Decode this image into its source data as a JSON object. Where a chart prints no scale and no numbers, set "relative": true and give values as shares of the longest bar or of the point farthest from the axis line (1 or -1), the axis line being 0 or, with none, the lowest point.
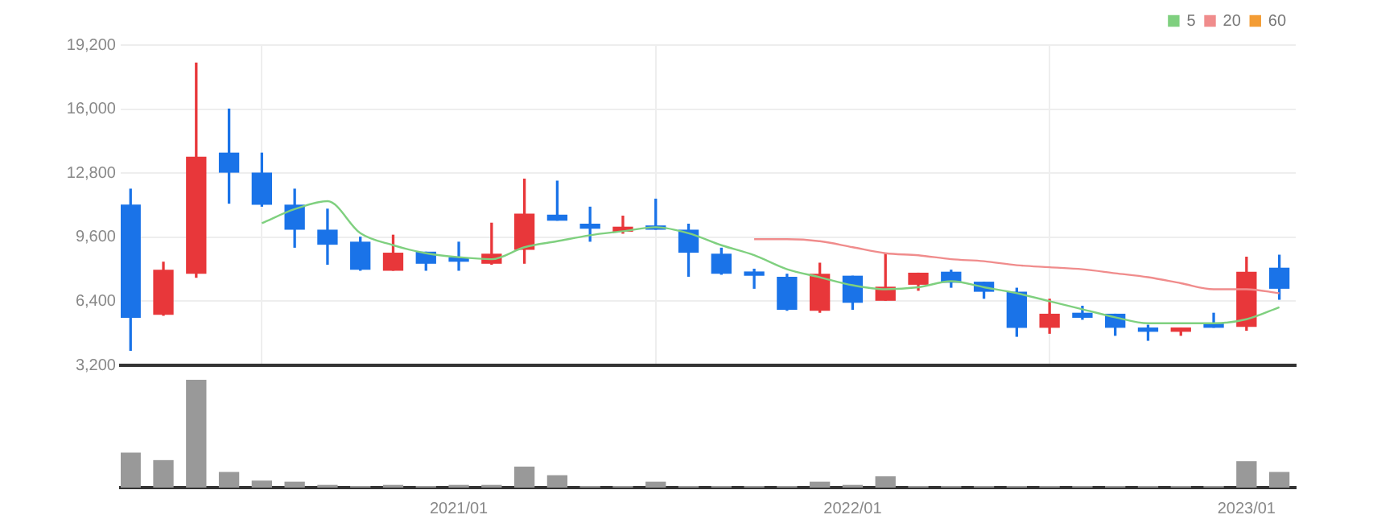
{
  "chart_data": [
    {
      "type": "candlestick",
      "x": [
        "2020-03",
        "2020-04",
        "2020-05",
        "2020-06",
        "2020-07",
        "2020-08",
        "2020-09",
        "2020-10",
        "2020-11",
        "2020-12",
        "2021-01",
        "2021-02",
        "2021-03",
        "2021-04",
        "2021-05",
        "2021-06",
        "2021-07",
        "2021-08",
        "2021-09",
        "2021-10",
        "2021-11",
        "2021-12",
        "2022-01",
        "2022-02",
        "2022-03",
        "2022-04",
        "2022-05",
        "2022-06",
        "2022-07",
        "2022-08",
        "2022-09",
        "2022-10",
        "2022-11",
        "2022-12",
        "2023-01",
        "2023-02"
      ],
      "ohlc": [
        [
          11200,
          12000,
          3950,
          5600
        ],
        [
          5750,
          8350,
          5700,
          7950
        ],
        [
          7800,
          18300,
          7600,
          13600
        ],
        [
          13800,
          16000,
          11300,
          12850
        ],
        [
          12800,
          13800,
          11150,
          11250
        ],
        [
          11200,
          12000,
          9100,
          10000
        ],
        [
          9950,
          11000,
          8250,
          9250
        ],
        [
          9350,
          9600,
          7950,
          8000
        ],
        [
          7950,
          9700,
          7950,
          8800
        ],
        [
          8850,
          8850,
          7950,
          8300
        ],
        [
          8500,
          9350,
          7950,
          8400
        ],
        [
          8300,
          10300,
          8250,
          8750
        ],
        [
          9000,
          12500,
          8300,
          10750
        ],
        [
          10700,
          12400,
          10450,
          10450
        ],
        [
          10250,
          11100,
          9400,
          10050
        ],
        [
          9900,
          10650,
          9800,
          10100
        ],
        [
          10150,
          11500,
          10000,
          10000
        ],
        [
          9950,
          10250,
          7650,
          8850
        ],
        [
          8750,
          9050,
          7750,
          7800
        ],
        [
          7800,
          8000,
          7050,
          7700
        ],
        [
          7600,
          7750,
          5950,
          6000
        ],
        [
          5950,
          8300,
          5850,
          7750
        ],
        [
          7650,
          7650,
          6000,
          6350
        ],
        [
          6450,
          8800,
          6450,
          7100
        ],
        [
          7250,
          7800,
          6950,
          7800
        ],
        [
          7850,
          7950,
          7100,
          7350
        ],
        [
          7350,
          7350,
          6550,
          6900
        ],
        [
          6850,
          7050,
          4650,
          5100
        ],
        [
          5100,
          6500,
          4800,
          5750
        ],
        [
          5800,
          6150,
          5500,
          5600
        ],
        [
          5750,
          5750,
          4700,
          5100
        ],
        [
          5050,
          5200,
          4450,
          4900
        ],
        [
          4900,
          5050,
          4700,
          5050
        ],
        [
          5250,
          5800,
          5100,
          5100
        ],
        [
          5150,
          8600,
          4950,
          7850
        ],
        [
          8050,
          8700,
          6500,
          7050
        ]
      ],
      "colors": [
        "#1a73e8",
        "#e8373a",
        "#e8373a",
        "#1a73e8",
        "#1a73e8",
        "#1a73e8",
        "#1a73e8",
        "#1a73e8",
        "#e8373a",
        "#1a73e8",
        "#1a73e8",
        "#e8373a",
        "#e8373a",
        "#1a73e8",
        "#1a73e8",
        "#e8373a",
        "#1a73e8",
        "#1a73e8",
        "#1a73e8",
        "#1a73e8",
        "#1a73e8",
        "#e8373a",
        "#1a73e8",
        "#e8373a",
        "#e8373a",
        "#1a73e8",
        "#1a73e8",
        "#1a73e8",
        "#e8373a",
        "#1a73e8",
        "#1a73e8",
        "#1a73e8",
        "#e8373a",
        "#1a73e8",
        "#e8373a",
        "#1a73e8"
      ],
      "series": [
        {
          "type": "line",
          "name": "5",
          "color": "#7fd07f",
          "values": [
            null,
            null,
            null,
            null,
            10300,
            11000,
            11400,
            9800,
            9200,
            8800,
            8600,
            8500,
            9100,
            9400,
            9700,
            9900,
            10100,
            9800,
            9200,
            8700,
            8000,
            7600,
            7200,
            7000,
            7100,
            7400,
            7100,
            6800,
            6400,
            6000,
            5600,
            5300,
            5300,
            5300,
            5500,
            6100
          ]
        },
        {
          "type": "line",
          "name": "20",
          "color": "#f08c8c",
          "values": [
            null,
            null,
            null,
            null,
            null,
            null,
            null,
            null,
            null,
            null,
            null,
            null,
            null,
            null,
            null,
            null,
            null,
            null,
            null,
            9500,
            9500,
            9400,
            9100,
            8800,
            8700,
            8500,
            8400,
            8200,
            8100,
            8000,
            7800,
            7600,
            7300,
            7000,
            7000,
            6800
          ]
        },
        {
          "type": "line",
          "name": "60",
          "color": "#f39c34",
          "values": [
            null,
            null,
            null,
            null,
            null,
            null,
            null,
            null,
            null,
            null,
            null,
            null,
            null,
            null,
            null,
            null,
            null,
            null,
            null,
            null,
            null,
            null,
            null,
            null,
            null,
            null,
            null,
            null,
            null,
            null,
            null,
            null,
            null,
            null,
            null,
            null
          ]
        }
      ],
      "xlim": [
        "2020-02-22",
        "2023-02-16"
      ],
      "xticks": [
        {
          "value": "2021-01",
          "label": null
        },
        {
          "value": "2022-01",
          "label": null
        },
        {
          "value": "2023-01",
          "label": null
        }
      ],
      "ylim": [
        3200,
        19200
      ],
      "yticks": [
        {
          "value": 3200,
          "label": "3,200"
        },
        {
          "value": 6400,
          "label": "6,400"
        },
        {
          "value": 9600,
          "label": "9,600"
        },
        {
          "value": 12800,
          "label": "12,800"
        },
        {
          "value": 16000,
          "label": "16,000"
        },
        {
          "value": 19200,
          "label": "19,200"
        }
      ],
      "grid": true,
      "legend": "top right",
      "tick_labels": "y"
    },
    {
      "type": "bar",
      "relative": true,
      "color": "#999999",
      "x": [
        "2020-03",
        "2020-04",
        "2020-05",
        "2020-06",
        "2020-07",
        "2020-08",
        "2020-09",
        "2020-10",
        "2020-11",
        "2020-12",
        "2021-01",
        "2021-02",
        "2021-03",
        "2021-04",
        "2021-05",
        "2021-06",
        "2021-07",
        "2021-08",
        "2021-09",
        "2021-10",
        "2021-11",
        "2021-12",
        "2022-01",
        "2022-02",
        "2022-03",
        "2022-04",
        "2022-05",
        "2022-06",
        "2022-07",
        "2022-08",
        "2022-09",
        "2022-10",
        "2022-11",
        "2022-12",
        "2023-01",
        "2023-02"
      ],
      "values": [
        0.32,
        0.25,
        1,
        0.14,
        0.06,
        0.05,
        0.02,
        0.01,
        0.02,
        0.01,
        0.02,
        0.02,
        0.19,
        0.11,
        0.01,
        0.01,
        0.05,
        0.01,
        0.01,
        0.01,
        0.01,
        0.05,
        0.02,
        0.1,
        0.01,
        0.01,
        0.01,
        0.01,
        0.01,
        0.01,
        0.01,
        0.01,
        0.01,
        0.01,
        0.24,
        0.14
      ],
      "xlim": [
        "2020-02-22",
        "2023-02-16"
      ],
      "xticks": [
        {
          "value": "2021-01",
          "label": "2021/01"
        },
        {
          "value": "2022-01",
          "label": "2022/01"
        },
        {
          "value": "2023-01",
          "label": "2023/01"
        }
      ],
      "tick_labels": "x"
    }
  ]
}
